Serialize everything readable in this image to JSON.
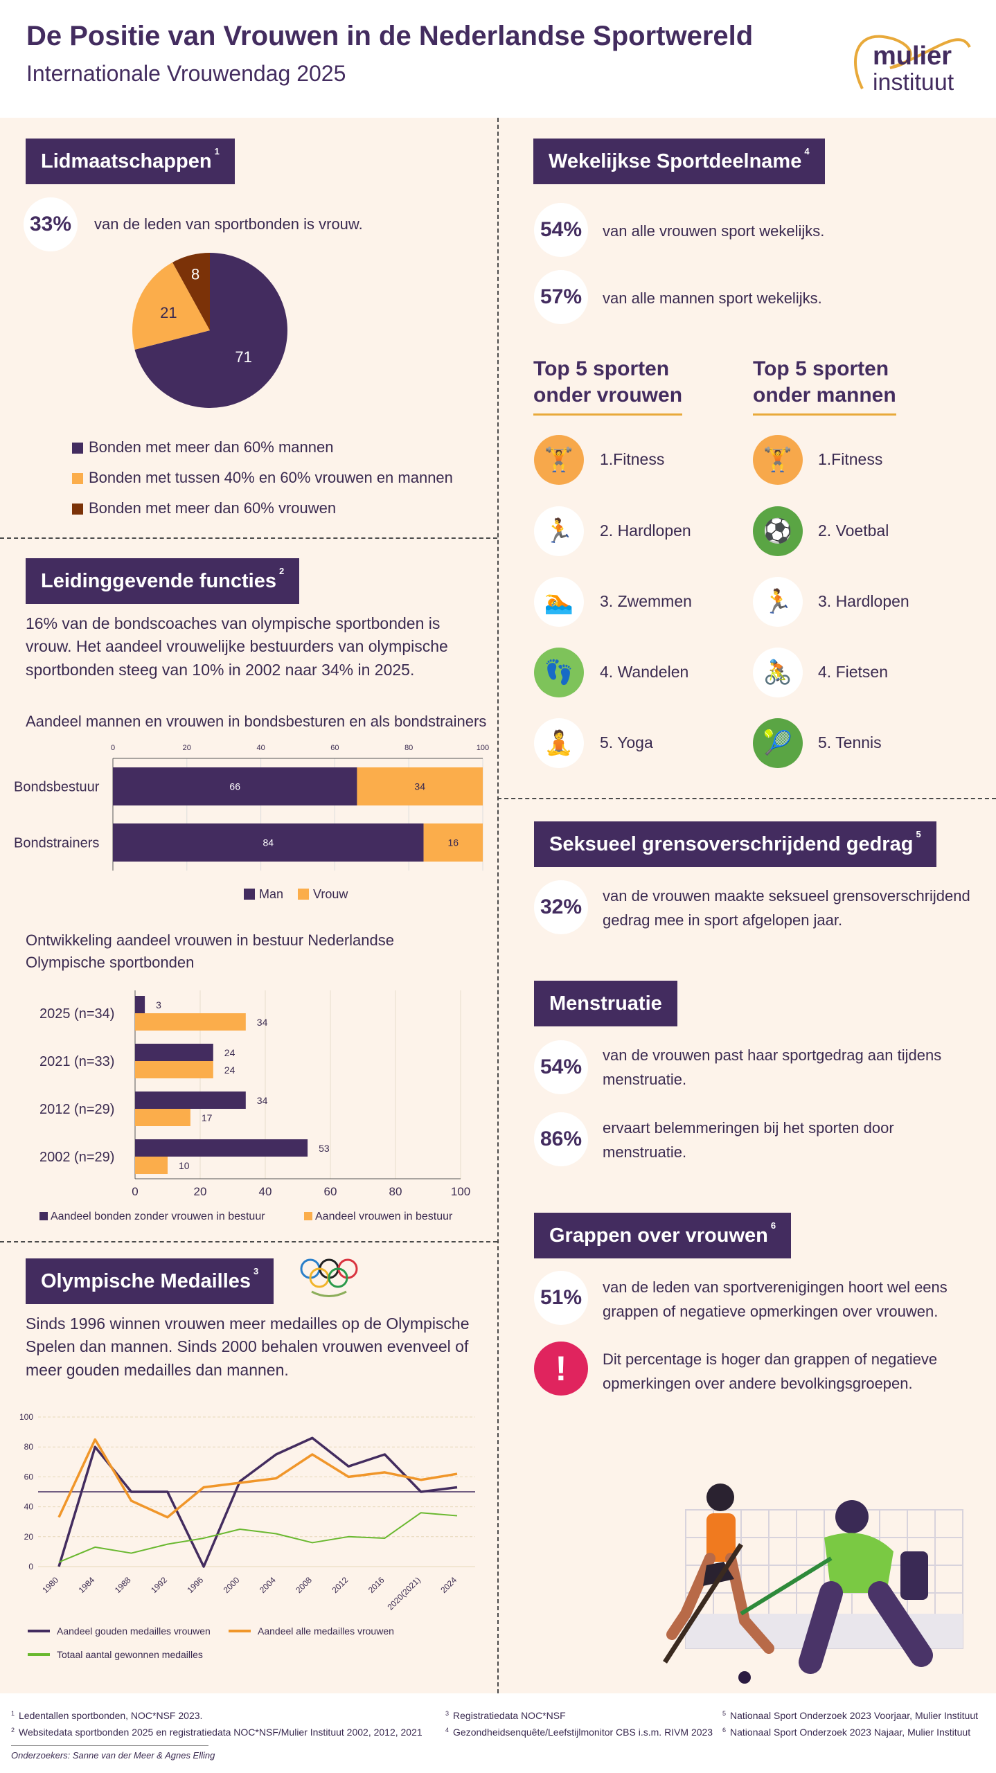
{
  "header": {
    "title": "De Positie van Vrouwen in de Nederlandse Sportwereld",
    "subtitle": "Internationale Vrouwendag 2025",
    "logo_line1": "mulier",
    "logo_line2": "instituut"
  },
  "colors": {
    "purple": "#432c5f",
    "orange": "#fbad4b",
    "brown": "#7b3208",
    "green": "#69b82f",
    "cream": "#fdf3ea"
  },
  "lidmaatschappen": {
    "title": "Lidmaatschappen",
    "sup": "1",
    "stat": "33%",
    "stat_text": "van de leden van sportbonden is vrouw.",
    "pie": [
      {
        "label": "Bonden met meer dan 60% mannen",
        "value": 71,
        "color": "#432c5f"
      },
      {
        "label": "Bonden met tussen 40% en 60% vrouwen en mannen",
        "value": 21,
        "color": "#fbad4b"
      },
      {
        "label": "Bonden met meer dan 60% vrouwen",
        "value": 8,
        "color": "#7b3208"
      }
    ]
  },
  "leiding": {
    "title": "Leidinggevende functies",
    "sup": "2",
    "text": "16% van de bondscoaches van olympische sportbonden is vrouw. Het aandeel vrouwelijke bestuurders van olympische sportbonden steeg van 10% in 2002 naar 34% in 2025.",
    "chart1_title": "Aandeel mannen en vrouwen in bondsbesturen en als bondstrainers",
    "chart2_title": "Ontwikkeling aandeel vrouwen in bestuur Nederlandse Olympische sportbonden"
  },
  "medailles": {
    "title": "Olympische Medailles",
    "sup": "3",
    "text": "Sinds 1996 winnen vrouwen meer medailles op de Olympische Spelen dan mannen. Sinds 2000 behalen vrouwen evenveel of meer gouden medailles dan mannen."
  },
  "chart_data": [
    {
      "type": "pie",
      "values": [
        71,
        21,
        8
      ],
      "labels": [
        "Bonden met meer dan 60% mannen",
        "Bonden met tussen 40% en 60% vrouwen en mannen",
        "Bonden met meer dan 60% vrouwen"
      ]
    },
    {
      "type": "bar",
      "orientation": "horizontal-stacked",
      "title": "Aandeel mannen en vrouwen in bondsbesturen en als bondstrainers",
      "categories": [
        "Bondsbestuur",
        "Bondstrainers"
      ],
      "series": [
        {
          "name": "Man",
          "values": [
            66,
            84
          ],
          "color": "#432c5f"
        },
        {
          "name": "Vrouw",
          "values": [
            34,
            16
          ],
          "color": "#fbad4b"
        }
      ],
      "xlim": [
        0,
        100
      ],
      "ticks": [
        0,
        20,
        40,
        60,
        80,
        100
      ]
    },
    {
      "type": "bar",
      "orientation": "horizontal-grouped",
      "title": "Ontwikkeling aandeel vrouwen in bestuur Nederlandse Olympische sportbonden",
      "categories": [
        "2025 (n=34)",
        "2021 (n=33)",
        "2012 (n=29)",
        "2002 (n=29)"
      ],
      "series": [
        {
          "name": "Aandeel bonden zonder vrouwen in bestuur",
          "values": [
            3,
            24,
            34,
            53
          ],
          "color": "#432c5f"
        },
        {
          "name": "Aandeel vrouwen in bestuur",
          "values": [
            34,
            24,
            17,
            10
          ],
          "color": "#fbad4b"
        }
      ],
      "xlim": [
        0,
        100
      ],
      "ticks": [
        0,
        20,
        40,
        60,
        80,
        100
      ]
    },
    {
      "type": "line",
      "x": [
        "1980",
        "1984",
        "1988",
        "1992",
        "1996",
        "2000",
        "2004",
        "2008",
        "2012",
        "2016",
        "2020(2021)",
        "2024"
      ],
      "series": [
        {
          "name": "Aandeel gouden medailles vrouwen",
          "values": [
            0,
            80,
            50,
            50,
            0,
            57,
            75,
            86,
            67,
            75,
            50,
            53
          ],
          "color": "#432c5f"
        },
        {
          "name": "Aandeel alle medailles vrouwen",
          "values": [
            33,
            85,
            44,
            33,
            53,
            56,
            59,
            75,
            60,
            63,
            58,
            62
          ],
          "color": "#f0962a"
        },
        {
          "name": "Totaal aantal gewonnen medailles",
          "values": [
            3,
            13,
            9,
            15,
            19,
            25,
            22,
            16,
            20,
            19,
            36,
            34
          ],
          "color": "#69b82f"
        }
      ],
      "ylim": [
        0,
        100
      ],
      "ticks": [
        0,
        20,
        40,
        60,
        80,
        100
      ],
      "reference_line": 50
    }
  ],
  "wekelijks": {
    "title": "Wekelijkse Sportdeelname",
    "sup": "4",
    "stat1": "54%",
    "text1": "van alle vrouwen sport wekelijks.",
    "stat2": "57%",
    "text2": "van alle mannen sport wekelijks.",
    "top5_women_title_1": "Top 5 sporten",
    "top5_women_title_2": "onder vrouwen",
    "top5_men_title_1": "Top 5 sporten",
    "top5_men_title_2": "onder mannen",
    "women": [
      {
        "label": "1.Fitness",
        "icon": "dumbbell-icon",
        "glyph": "🏋"
      },
      {
        "label": "2. Hardlopen",
        "icon": "runner-icon",
        "glyph": "🏃"
      },
      {
        "label": "3. Zwemmen",
        "icon": "swimmer-icon",
        "glyph": "🏊"
      },
      {
        "label": "4. Wandelen",
        "icon": "footprints-icon",
        "glyph": "👣"
      },
      {
        "label": "5. Yoga",
        "icon": "yoga-icon",
        "glyph": "🧘"
      }
    ],
    "men": [
      {
        "label": "1.Fitness",
        "icon": "dumbbell-icon",
        "glyph": "🏋"
      },
      {
        "label": "2. Voetbal",
        "icon": "football-icon",
        "glyph": "⚽"
      },
      {
        "label": "3. Hardlopen",
        "icon": "runner-icon",
        "glyph": "🏃"
      },
      {
        "label": "4. Fietsen",
        "icon": "cyclist-icon",
        "glyph": "🚴"
      },
      {
        "label": "5. Tennis",
        "icon": "tennis-icon",
        "glyph": "🎾"
      }
    ]
  },
  "seksueel": {
    "title": "Seksueel grensoverschrijdend gedrag",
    "sup": "5",
    "stat": "32%",
    "text": "van de vrouwen maakte seksueel grensoverschrijdend gedrag mee in sport afgelopen jaar."
  },
  "menstruatie": {
    "title": "Menstruatie",
    "stat1": "54%",
    "text1": "van de vrouwen past haar sportgedrag aan tijdens menstruatie.",
    "stat2": "86%",
    "text2": "ervaart belemmeringen bij het sporten door menstruatie."
  },
  "grappen": {
    "title": "Grappen over vrouwen",
    "sup": "6",
    "stat": "51%",
    "text": "van de leden van sportverenigingen hoort wel eens grappen of negatieve opmerkingen over vrouwen.",
    "alert_text": "Dit percentage is hoger dan grappen of negatieve opmerkingen over andere bevolkingsgroepen."
  },
  "footnotes": {
    "n1": "Ledentallen sportbonden, NOC*NSF 2023.",
    "n2": "Websitedata sportbonden 2025 en registratiedata NOC*NSF/Mulier Instituut 2002, 2012, 2021",
    "n3": "Registratiedata NOC*NSF",
    "n4": "Gezondheidsenquête/Leefstijlmonitor CBS i.s.m. RIVM 2023",
    "n5": "Nationaal Sport Onderzoek 2023 Voorjaar, Mulier Instituut",
    "n6": "Nationaal Sport Onderzoek 2023 Najaar, Mulier Instituut",
    "authors": "Onderzoekers: Sanne van der Meer & Agnes Elling"
  }
}
